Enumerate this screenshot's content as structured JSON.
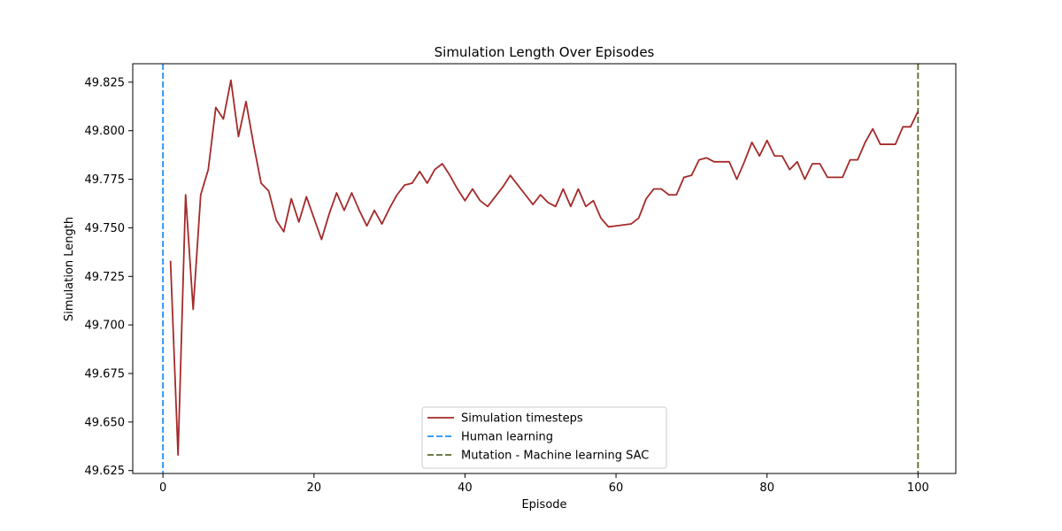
{
  "chart_data": {
    "type": "line",
    "title": "Simulation Length Over Episodes",
    "xlabel": "Episode",
    "ylabel": "Simulation Length",
    "xlim": [
      -4,
      105
    ],
    "ylim": [
      49.6235,
      49.8345
    ],
    "x_ticks": [
      0,
      20,
      40,
      60,
      80,
      100
    ],
    "x_tick_labels": [
      "0",
      "20",
      "40",
      "60",
      "80",
      "100"
    ],
    "y_ticks": [
      49.625,
      49.65,
      49.675,
      49.7,
      49.725,
      49.75,
      49.775,
      49.8,
      49.825
    ],
    "y_tick_labels": [
      "49.625",
      "49.650",
      "49.675",
      "49.700",
      "49.725",
      "49.750",
      "49.775",
      "49.800",
      "49.825"
    ],
    "grid": false,
    "legend_position": "lower center",
    "series": [
      {
        "name": "Simulation timesteps",
        "color": "#a52a2a",
        "style": "solid",
        "x": [
          1,
          2,
          3,
          4,
          5,
          6,
          7,
          8,
          9,
          10,
          11,
          12,
          13,
          14,
          15,
          16,
          17,
          18,
          19,
          20,
          21,
          22,
          23,
          24,
          25,
          26,
          27,
          28,
          29,
          30,
          31,
          32,
          33,
          34,
          35,
          36,
          37,
          38,
          39,
          40,
          41,
          42,
          43,
          44,
          45,
          46,
          47,
          48,
          49,
          50,
          51,
          52,
          53,
          54,
          55,
          56,
          57,
          58,
          59,
          60,
          61,
          62,
          63,
          64,
          65,
          66,
          67,
          68,
          69,
          70,
          71,
          72,
          73,
          74,
          75,
          76,
          77,
          78,
          79,
          80,
          81,
          82,
          83,
          84,
          85,
          86,
          87,
          88,
          89,
          90,
          91,
          92,
          93,
          94,
          95,
          96,
          97,
          98,
          99,
          100
        ],
        "values": [
          49.733,
          49.633,
          49.767,
          49.708,
          49.767,
          49.78,
          49.812,
          49.806,
          49.826,
          49.797,
          49.815,
          49.793,
          49.773,
          49.769,
          49.754,
          49.748,
          49.765,
          49.753,
          49.766,
          49.755,
          49.744,
          49.757,
          49.768,
          49.759,
          49.768,
          49.759,
          49.751,
          49.759,
          49.752,
          49.76,
          49.767,
          49.772,
          49.773,
          49.779,
          49.773,
          49.78,
          49.783,
          49.777,
          49.77,
          49.764,
          49.77,
          49.764,
          49.761,
          49.766,
          49.771,
          49.777,
          49.772,
          49.767,
          49.762,
          49.767,
          49.763,
          49.761,
          49.77,
          49.761,
          49.77,
          49.761,
          49.764,
          49.755,
          49.7505,
          49.751,
          49.7515,
          49.752,
          49.755,
          49.765,
          49.77,
          49.77,
          49.767,
          49.767,
          49.776,
          49.777,
          49.785,
          49.786,
          49.784,
          49.784,
          49.784,
          49.775,
          49.784,
          49.794,
          49.787,
          49.795,
          49.787,
          49.787,
          49.78,
          49.784,
          49.775,
          49.783,
          49.783,
          49.776,
          49.776,
          49.776,
          49.785,
          49.785,
          49.794,
          49.801,
          49.793,
          49.793,
          49.793,
          49.802,
          49.802,
          49.81
        ]
      },
      {
        "name": "Human learning",
        "color": "#1e90ff",
        "style": "dashed",
        "vline_x": 0
      },
      {
        "name": "Mutation - Machine learning SAC",
        "color": "#556b2f",
        "style": "dashed",
        "vline_x": 100
      }
    ]
  }
}
